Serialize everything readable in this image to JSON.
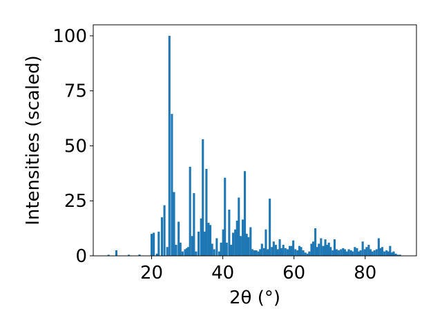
{
  "chart_data": {
    "type": "bar",
    "title": "",
    "xlabel": "2θ (°)",
    "ylabel": "Intensities (scaled)",
    "xlim": [
      3.6,
      94.4
    ],
    "ylim": [
      0,
      105
    ],
    "xticks": [
      20,
      40,
      60,
      80
    ],
    "yticks": [
      0,
      25,
      50,
      75,
      100
    ],
    "grid": false,
    "bar_color": "#1f77b4",
    "bar_width": 0.6,
    "series": [
      {
        "x": [
          7.9,
          10.1,
          13.6,
          16.6,
          20.0,
          20.6,
          21.5,
          22.0,
          22.9,
          23.6,
          24.4,
          25.0,
          25.7,
          26.3,
          26.9,
          27.6,
          28.1,
          28.7,
          29.4,
          29.9,
          30.3,
          30.8,
          31.4,
          31.9,
          32.5,
          33.2,
          33.9,
          34.4,
          34.9,
          35.4,
          36.0,
          36.5,
          37.0,
          37.6,
          38.3,
          39.0,
          39.5,
          40.1,
          40.6,
          41.1,
          41.8,
          42.3,
          42.9,
          43.5,
          44.0,
          44.5,
          45.0,
          45.6,
          46.2,
          46.7,
          47.2,
          47.8,
          48.3,
          48.9,
          49.4,
          50.0,
          50.5,
          51.0,
          51.6,
          52.1,
          52.7,
          53.2,
          53.8,
          54.3,
          54.9,
          55.4,
          56.0,
          56.5,
          57.0,
          57.6,
          58.2,
          58.8,
          59.3,
          59.8,
          60.4,
          61.0,
          61.5,
          62.0,
          62.6,
          63.2,
          63.8,
          64.3,
          64.9,
          65.4,
          66.0,
          66.5,
          67.0,
          67.6,
          68.2,
          68.8,
          69.3,
          69.8,
          70.3,
          70.9,
          71.4,
          72.0,
          72.6,
          73.2,
          73.8,
          74.3,
          74.8,
          75.4,
          76.0,
          76.5,
          77.1,
          77.7,
          78.2,
          78.7,
          79.3,
          79.9,
          80.4,
          81.0,
          81.5,
          82.0,
          82.6,
          83.2,
          83.8,
          84.3,
          84.8,
          85.4,
          86.0,
          86.5,
          87.0,
          87.5,
          88.0,
          88.6,
          89.2,
          89.8
        ],
        "values": [
          0.5,
          2.5,
          0.5,
          0.6,
          10.0,
          10.5,
          1.0,
          11.0,
          17.5,
          23.0,
          4.0,
          100.0,
          64.5,
          29.0,
          5.0,
          15.5,
          6.0,
          2.0,
          3.0,
          3.5,
          4.0,
          40.5,
          9.0,
          28.5,
          2.0,
          11.0,
          17.0,
          53.0,
          11.0,
          39.5,
          15.0,
          14.0,
          5.5,
          3.0,
          8.0,
          2.0,
          6.0,
          12.0,
          35.5,
          6.0,
          21.0,
          5.0,
          10.5,
          12.0,
          16.0,
          26.5,
          9.0,
          16.5,
          38.5,
          10.0,
          8.5,
          13.0,
          3.0,
          2.5,
          2.5,
          2.0,
          3.0,
          5.5,
          3.5,
          12.0,
          3.0,
          26.0,
          4.0,
          6.5,
          5.0,
          3.0,
          7.5,
          3.5,
          5.0,
          3.5,
          3.0,
          4.5,
          4.5,
          7.0,
          3.0,
          2.5,
          4.5,
          4.0,
          2.5,
          1.5,
          1.0,
          2.0,
          5.5,
          6.5,
          12.5,
          4.0,
          5.5,
          8.0,
          4.5,
          7.5,
          5.0,
          6.0,
          4.0,
          2.5,
          7.5,
          3.0,
          2.5,
          3.0,
          3.5,
          3.0,
          2.0,
          3.0,
          2.5,
          2.0,
          4.0,
          3.5,
          2.0,
          2.5,
          6.5,
          3.0,
          4.0,
          5.0,
          3.0,
          2.0,
          2.5,
          3.0,
          8.0,
          3.5,
          4.0,
          2.0,
          2.5,
          2.0,
          4.5,
          1.5,
          2.0,
          1.0,
          0.5,
          0.5
        ]
      }
    ]
  }
}
